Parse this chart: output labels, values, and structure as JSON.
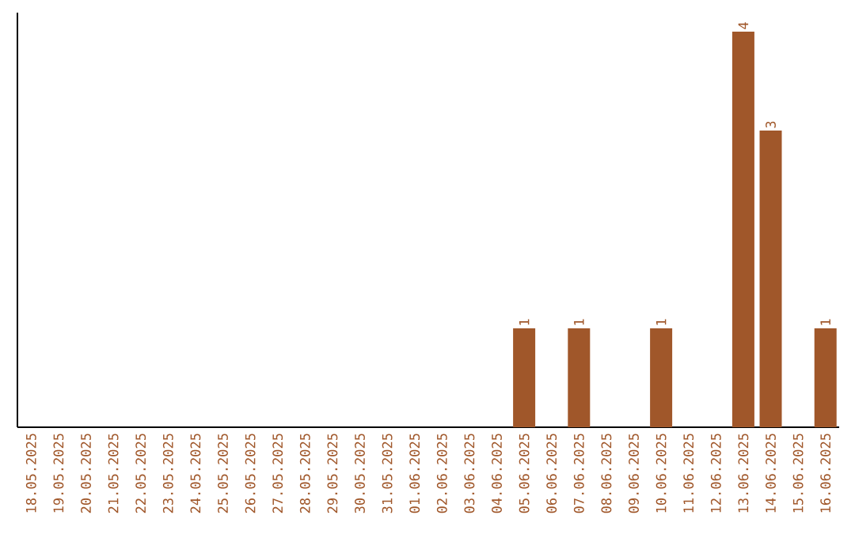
{
  "chart_data": {
    "type": "bar",
    "categories": [
      "18.05.2025",
      "19.05.2025",
      "20.05.2025",
      "21.05.2025",
      "22.05.2025",
      "23.05.2025",
      "24.05.2025",
      "25.05.2025",
      "26.05.2025",
      "27.05.2025",
      "28.05.2025",
      "29.05.2025",
      "30.05.2025",
      "31.05.2025",
      "01.06.2025",
      "02.06.2025",
      "03.06.2025",
      "04.06.2025",
      "05.06.2025",
      "06.06.2025",
      "07.06.2025",
      "08.06.2025",
      "09.06.2025",
      "10.06.2025",
      "11.06.2025",
      "12.06.2025",
      "13.06.2025",
      "14.06.2025",
      "15.06.2025",
      "16.06.2025"
    ],
    "values": [
      null,
      null,
      null,
      null,
      null,
      null,
      null,
      null,
      null,
      null,
      null,
      null,
      null,
      null,
      null,
      null,
      null,
      null,
      1,
      null,
      1,
      null,
      null,
      1,
      null,
      null,
      4,
      3,
      null,
      1
    ],
    "data_labels": true,
    "color": "#a0572a",
    "tick_labels": "x",
    "grid": false
  }
}
